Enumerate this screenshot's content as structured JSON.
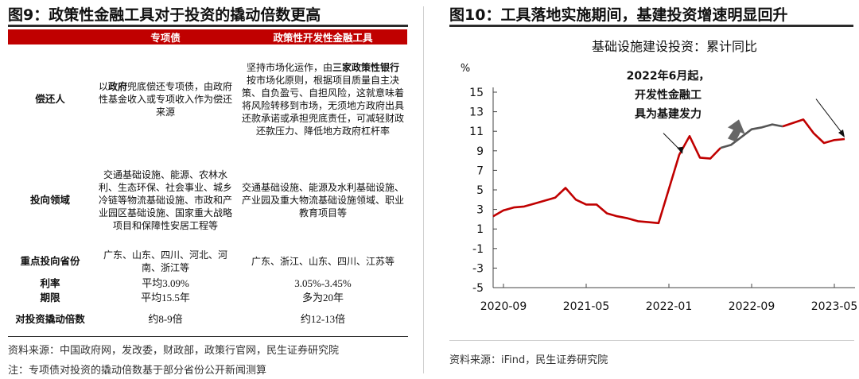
{
  "left": {
    "title": "图9：政策性金融工具对于投资的撬动倍数更高",
    "table": {
      "headers": [
        "",
        "专项债",
        "政策性开发性金融工具"
      ],
      "rows": [
        {
          "label": "偿还人",
          "col1_pre": "以",
          "col1_bold": "政府",
          "col1_post": "兜底偿还专项债，由政府性基金收入或专项收入作为偿还来源",
          "col2_pre": "坚持市场化运作，由",
          "col2_bold": "三家政策性银行",
          "col2_post": "按市场化原则，根据项目质量自主决策、自负盈亏、自担风险，这就意味着将风险转移到市场，无须地方政府出具还款承诺或承担兜底责任，可减轻财政还款压力、降低地方政府杠杆率"
        },
        {
          "label": "投向领域",
          "col1": "交通基础设施、能源、农林水利、生态环保、社会事业、城乡冷链等物流基础设施、市政和产业园区基础设施、国家重大战略项目和保障性安居工程等",
          "col2": "交通基础设施、能源及水利基础设施、产业园及重大物流基础设施领域、职业教育项目等"
        },
        {
          "label": "重点投向省份",
          "col1": "广东、山东、四川、河北、河南、浙江等",
          "col2": "广东、浙江、山东、四川、江苏等"
        },
        {
          "label": "利率",
          "col1": "平均3.09%",
          "col2": "3.05%-3.45%"
        },
        {
          "label": "期限",
          "col1": "平均15.5年",
          "col2": "多为20年"
        },
        {
          "label": "对投资撬动倍数",
          "col1": "约8-9倍",
          "col2": "约12-13倍"
        }
      ]
    },
    "source": "资料来源：中国政府网，发改委，财政部，政策行官网，民生证券研究院",
    "note": "注：专项债对投资的撬动倍数基于部分省份公开新闻测算"
  },
  "right": {
    "title": "图10：工具落地实施期间，基建投资增速明显回升",
    "source": "资料来源：iFind，民生证券研究院"
  },
  "chart_data": {
    "type": "line",
    "title": "基础设施建设投资：累计同比",
    "unit": "%",
    "ylim": [
      -5,
      15
    ],
    "yticks": [
      15,
      13,
      11,
      9,
      7,
      5,
      3,
      1,
      -1,
      -3,
      -5
    ],
    "xticks": [
      "2020-09",
      "2021-05",
      "2022-01",
      "2022-09",
      "2023-05"
    ],
    "annotation": {
      "lines": [
        "2022年6月起，",
        "开发性金融工",
        "具为基建发力"
      ]
    },
    "colors": {
      "before": "#c00000",
      "tool_period": "#555555"
    },
    "series": [
      {
        "name": "基础设施建设投资：累计同比",
        "x": [
          "2020-08",
          "2020-09",
          "2020-10",
          "2020-11",
          "2020-12",
          "2021-02",
          "2021-03",
          "2021-04",
          "2021-05",
          "2021-06",
          "2021-07",
          "2021-08",
          "2021-09",
          "2021-10",
          "2021-11",
          "2021-12",
          "2022-02",
          "2022-03",
          "2022-04",
          "2022-05",
          "2022-06",
          "2022-07",
          "2022-08",
          "2022-09",
          "2022-10",
          "2022-11",
          "2022-12",
          "2023-02",
          "2023-03",
          "2023-04",
          "2023-05",
          "2023-06"
        ],
        "values": [
          2.3,
          2.9,
          3.2,
          3.3,
          3.6,
          4.2,
          5.2,
          4.0,
          3.5,
          3.5,
          2.6,
          2.3,
          2.1,
          1.8,
          1.7,
          1.6,
          8.6,
          10.5,
          8.3,
          8.2,
          9.3,
          9.6,
          10.4,
          11.2,
          11.4,
          11.7,
          11.5,
          12.2,
          10.8,
          9.8,
          10.1,
          10.2
        ]
      }
    ]
  }
}
